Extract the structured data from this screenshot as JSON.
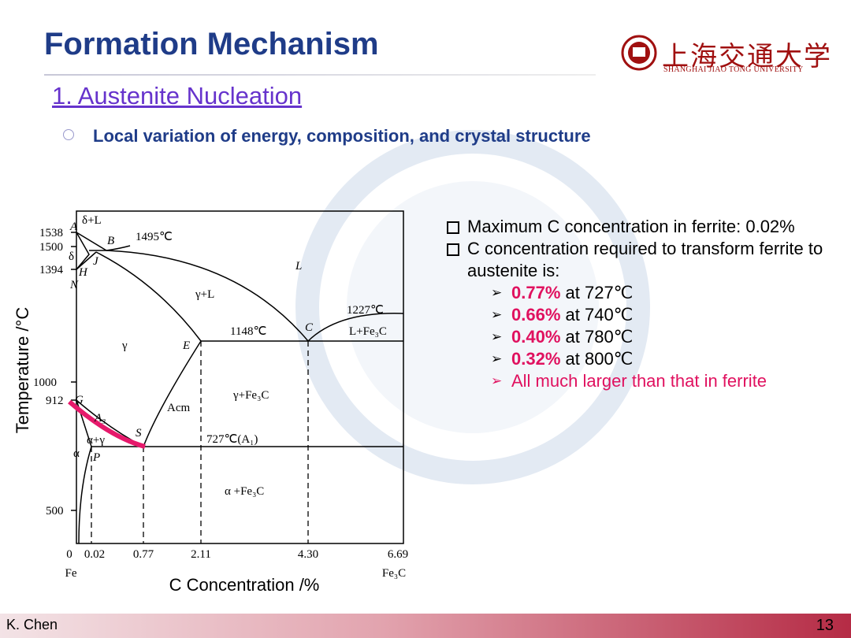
{
  "header": {
    "title": "Formation Mechanism",
    "subtitle": "1. Austenite Nucleation",
    "logo_cn": "上海交通大学",
    "logo_en": "SHANGHAI JIAO TONG UNIVERSITY"
  },
  "bullet": "Local variation of energy, composition, and crystal structure",
  "diagram": {
    "y_axis_label": "Temperature /°C",
    "x_axis_label": "C Concentration /%",
    "y_ticks": [
      "1538",
      "1500",
      "1394",
      "1000",
      "912",
      "500"
    ],
    "x_ticks": [
      "0",
      "0.02",
      "0.77",
      "2.11",
      "4.30",
      "6.69"
    ],
    "x_end_labels": [
      "Fe",
      "Fe₃C"
    ],
    "point_labels": [
      "A",
      "B",
      "H",
      "J",
      "N",
      "E",
      "C",
      "G",
      "S",
      "P"
    ],
    "region_labels": [
      "δ+L",
      "δ",
      "L",
      "γ+L",
      "γ",
      "L+Fe₃C",
      "γ+Fe₃C",
      "Acm",
      "A₃",
      "α+γ",
      "α",
      "α +Fe₃C"
    ],
    "temp_labels": [
      "1495℃",
      "1227℃",
      "1148℃",
      "727℃(A₁)"
    ]
  },
  "notes": [
    {
      "text": "Maximum C concentration in ferrite: 0.02%"
    },
    {
      "text": "C concentration required to transform ferrite to austenite is:"
    }
  ],
  "sub_items": [
    {
      "value": "0.77%",
      "text": "at 727℃"
    },
    {
      "value": "0.66%",
      "text": "at 740℃"
    },
    {
      "value": "0.40%",
      "text": "at 780℃"
    },
    {
      "value": "0.32%",
      "text": "at 800℃"
    },
    {
      "text": "All much larger than that in ferrite"
    }
  ],
  "footer": {
    "author": "K. Chen",
    "page": "13"
  }
}
